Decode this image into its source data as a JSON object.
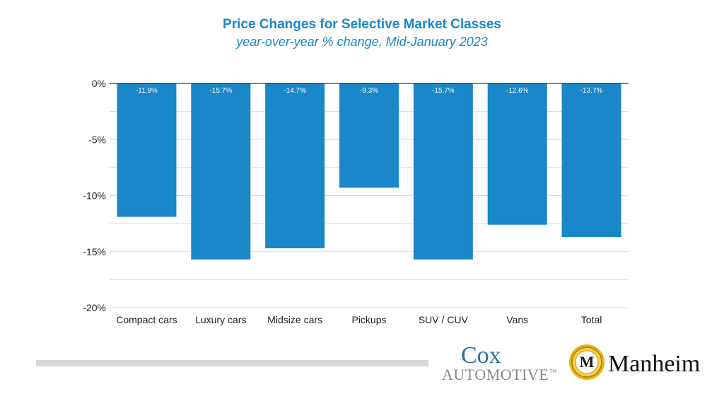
{
  "chart_data": {
    "type": "bar",
    "title": "Price Changes for Selective Market Classes",
    "subtitle": "year-over-year % change, Mid-January 2023",
    "categories": [
      "Compact cars",
      "Luxury cars",
      "Midsize cars",
      "Pickups",
      "SUV / CUV",
      "Vans",
      "Total"
    ],
    "values": [
      -11.9,
      -15.7,
      -14.7,
      -9.3,
      -15.7,
      -12.6,
      -13.7
    ],
    "value_labels": [
      "-11.9%",
      "-15.7%",
      "-14.7%",
      "-9.3%",
      "-15.7%",
      "-12.6%",
      "-13.7%"
    ],
    "ylim": [
      -20,
      0
    ],
    "yticks": [
      0,
      -5,
      -10,
      -15,
      -20
    ],
    "ytick_labels": [
      "0%",
      "-5%",
      "-10%",
      "-15%",
      "-20%"
    ],
    "grid": true,
    "xlabel": "",
    "ylabel": "",
    "bar_color": "#1a87c8"
  },
  "footer": {
    "cox_word": "Cox",
    "cox_sub": "AUTOMOTIVE",
    "cox_tm": "TM",
    "manheim_word": "Manheim",
    "manheim_emblem_letter": "M"
  },
  "colors": {
    "accent": "#1a87c8",
    "grid": "#d9d9d9",
    "axis": "#000000"
  }
}
